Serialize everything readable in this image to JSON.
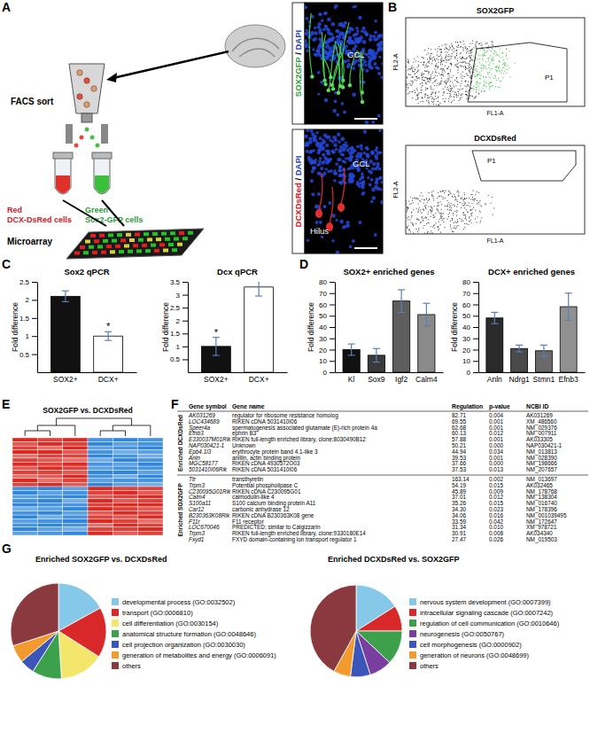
{
  "panel_labels": [
    "A",
    "B",
    "C",
    "D",
    "E",
    "F",
    "G"
  ],
  "schematic": {
    "sort_label": "FACS sort",
    "red_label": "Red",
    "red_cells": "DCX-DsRed cells",
    "green_label": "Green",
    "green_cells": "Sox2-GFP cells",
    "array_label": "Microarray"
  },
  "micrographs": [
    {
      "stain": "SOX2GFP",
      "separator": " / ",
      "counter": "DAPI",
      "regions": [
        "GCL"
      ]
    },
    {
      "stain": "DCXDsRed",
      "separator": " / ",
      "counter": "DAPI",
      "regions": [
        "GCL",
        "Hilus"
      ]
    }
  ],
  "facs": [
    {
      "title": "SOX2GFP",
      "gate": "P1",
      "xlabel": "FL1-A",
      "ylabel": "FL2-A"
    },
    {
      "title": "DCXDsRed",
      "gate": "P1",
      "xlabel": "FL1-A",
      "ylabel": "FL2-A"
    }
  ],
  "chart_data": [
    {
      "type": "bar",
      "title": "Sox2 qPCR",
      "ylabel": "Fold difference",
      "categories": [
        "SOX2+",
        "DCX+"
      ],
      "values": [
        2.1,
        1.0
      ],
      "errors": [
        0.15,
        0.12
      ],
      "colors": [
        "#111111",
        "#ffffff"
      ],
      "ylim": [
        0,
        2.5
      ],
      "yticks": [
        0.5,
        1,
        1.5,
        2,
        2.5
      ],
      "annotations": [
        {
          "text": "*",
          "category": "DCX+"
        }
      ]
    },
    {
      "type": "bar",
      "title": "Dcx qPCR",
      "ylabel": "Fold difference",
      "categories": [
        "SOX2+",
        "DCX+"
      ],
      "values": [
        1.0,
        3.3
      ],
      "errors": [
        0.35,
        0.35
      ],
      "colors": [
        "#111111",
        "#ffffff"
      ],
      "ylim": [
        0,
        3.5
      ],
      "yticks": [
        0.5,
        1,
        1.5,
        2,
        2.5,
        3,
        3.5
      ],
      "annotations": [
        {
          "text": "*",
          "category": "SOX2+"
        }
      ]
    },
    {
      "type": "bar",
      "title": "SOX2+ enriched genes",
      "ylabel": "Fold difference",
      "categories": [
        "Kl",
        "Sox9",
        "Igf2",
        "Calm4"
      ],
      "values": [
        20,
        15,
        63,
        51
      ],
      "errors": [
        5,
        6,
        10,
        10
      ],
      "colors": [
        "#111111",
        "#3a3a3a",
        "#5e5e5e",
        "#8a8a8a"
      ],
      "ylim": [
        0,
        80
      ],
      "yticks": [
        0,
        10,
        20,
        30,
        40,
        50,
        60,
        70,
        80
      ]
    },
    {
      "type": "bar",
      "title": "DCX+ enriched genes",
      "ylabel": "Fold difference",
      "categories": [
        "Anln",
        "Ndrg1",
        "Stmn1",
        "Efnb3"
      ],
      "values": [
        48,
        21,
        19,
        58
      ],
      "errors": [
        5,
        3,
        5,
        12
      ],
      "colors": [
        "#2a2a2a",
        "#4a4a4a",
        "#6a6a6a",
        "#909090"
      ],
      "ylim": [
        0,
        80
      ],
      "yticks": [
        0,
        10,
        20,
        30,
        40,
        50,
        60,
        70,
        80
      ]
    },
    {
      "type": "heatmap",
      "title": "SOX2GFP vs. DCXDsRed",
      "cells": [
        [
          0.9,
          0.8,
          0.9,
          -0.8,
          -0.9,
          -0.8
        ],
        [
          0.7,
          0.9,
          0.8,
          -0.9,
          -0.7,
          -0.8
        ],
        [
          0.8,
          0.6,
          0.9,
          -0.7,
          -0.8,
          -0.9
        ],
        [
          0.9,
          0.9,
          0.7,
          -0.8,
          -0.6,
          -0.7
        ],
        [
          0.6,
          0.8,
          0.8,
          -0.9,
          -0.8,
          -0.6
        ],
        [
          0.8,
          0.7,
          0.6,
          -0.6,
          -0.9,
          -0.8
        ],
        [
          0.9,
          0.8,
          0.9,
          -0.8,
          -0.7,
          -0.9
        ],
        [
          0.7,
          0.9,
          0.8,
          -0.7,
          -0.8,
          -0.8
        ],
        [
          0.8,
          0.8,
          0.7,
          -0.9,
          -0.9,
          -0.7
        ],
        [
          0.6,
          0.7,
          0.9,
          -0.8,
          -0.6,
          -0.9
        ],
        [
          0.9,
          0.6,
          0.8,
          -0.7,
          -0.8,
          -0.8
        ],
        [
          0.8,
          0.9,
          0.7,
          -0.9,
          -0.7,
          -0.6
        ],
        [
          -0.8,
          -0.9,
          -0.7,
          0.9,
          0.8,
          0.8
        ],
        [
          -0.9,
          -0.7,
          -0.8,
          0.8,
          0.9,
          0.7
        ],
        [
          -0.7,
          -0.8,
          -0.9,
          0.7,
          0.8,
          0.9
        ],
        [
          -0.8,
          -0.9,
          -0.6,
          0.9,
          0.7,
          0.8
        ],
        [
          -0.9,
          -0.8,
          -0.8,
          0.8,
          0.9,
          0.9
        ],
        [
          -0.6,
          -0.7,
          -0.9,
          0.9,
          0.8,
          0.7
        ],
        [
          -0.8,
          -0.9,
          -0.7,
          0.7,
          0.9,
          0.8
        ],
        [
          -0.9,
          -0.6,
          -0.8,
          0.8,
          0.7,
          0.9
        ],
        [
          -0.7,
          -0.8,
          -0.9,
          0.9,
          0.8,
          0.6
        ],
        [
          -0.8,
          -0.9,
          -0.8,
          0.6,
          0.9,
          0.8
        ],
        [
          -0.9,
          -0.7,
          -0.6,
          0.8,
          0.8,
          0.9
        ],
        [
          -0.7,
          -0.8,
          -0.9,
          0.9,
          0.7,
          0.8
        ]
      ]
    },
    {
      "type": "pie",
      "title": "Enriched SOX2GFP vs. DCXDsRed",
      "categories": [
        "developmental process (GO:0032502)",
        "transport (GO:0006810)",
        "cell differentiation (GO:0030154)",
        "anatomical structure formation (GO:0048646)",
        "cell projection organization (GO:0030030)",
        "generation of metabolites and energy (GO:0006091)",
        "others"
      ],
      "values": [
        17,
        17,
        15,
        10,
        5,
        6,
        30
      ],
      "colors": [
        "#86c8e8",
        "#d9282a",
        "#f3e66a",
        "#3da04a",
        "#3b55b8",
        "#f29a2e",
        "#8a3a3f"
      ]
    },
    {
      "type": "pie",
      "title": "Enriched DCXDsRed vs. SOX2GFP",
      "categories": [
        "nervous system development (GO:0007399)",
        "intracellular signaling cascade (GO:0007242)",
        "regulation of cell communication (GO:0010646)",
        "neurogenesis (GO:0050767)",
        "cell morphogenesis (GO:0000902)",
        "generation of neurons (GO:0048699)",
        "others"
      ],
      "values": [
        16,
        9,
        12,
        8,
        7,
        6,
        42
      ],
      "colors": [
        "#86c8e8",
        "#d9282a",
        "#3da04a",
        "#7a3f9e",
        "#3b55b8",
        "#f29a2e",
        "#8a3a3f"
      ]
    }
  ],
  "table": {
    "columns": [
      "Gene symbol",
      "Gene name",
      "Regulation",
      "p-value",
      "NCBI ID"
    ],
    "sections": [
      {
        "label": "Enriched DCXDsRed",
        "rows": [
          [
            "AK031269",
            "regulator for ribosome resistance homolog",
            "82.71",
            "0.004",
            "AK031269"
          ],
          [
            "LOC434689",
            "RIKEN cDNA 5031410I06",
            "69.55",
            "0.001",
            "XM_486560"
          ],
          [
            "Speer4a",
            "spermatogenesis associated glutamate (E)-rich protein 4a",
            "62.68",
            "0.001",
            "NM_029376"
          ],
          [
            "Efnb3",
            "ephrin B3",
            "60.13",
            "0.012",
            "NM_007911"
          ],
          [
            "E330037M01Rik",
            "RIKEN full-length enriched library, clone:8030490B12",
            "57.88",
            "0.001",
            "AK033305"
          ],
          [
            "NAP030421-1",
            "Unknown",
            "50.21",
            "0.000",
            "NAP030421-1"
          ],
          [
            "Epb4.1l3",
            "erythrocyte protein band 4.1-like 3",
            "44.94",
            "0.034",
            "NM_013813"
          ],
          [
            "Anln",
            "anillin, actin binding protein",
            "39.53",
            "0.001",
            "NM_028390"
          ],
          [
            "MGC58177",
            "RIKEN cDNA 4930572O03",
            "37.66",
            "0.000",
            "NM_198666"
          ],
          [
            "5031410I06Rik",
            "RIKEN cDNA 5031410I06",
            "37.53",
            "0.013",
            "NM_207657"
          ]
        ]
      },
      {
        "label": "Enriched SOX2GFP",
        "rows": [
          [
            "Ttr",
            "transthyretin",
            "163.14",
            "0.002",
            "NM_013697"
          ],
          [
            "Trpm3",
            "Potential phospholipase C",
            "54.19",
            "0.015",
            "AK032465"
          ],
          [
            "C230095G01Rik",
            "RIKEN cDNA C230095G01",
            "45.89",
            "0.009",
            "NM_178768"
          ],
          [
            "Calm4",
            "calmodulin-like 4",
            "37.01",
            "0.012",
            "NM_138304"
          ],
          [
            "S100a11",
            "S100 calcium binding protein A11",
            "35.26",
            "0.015",
            "NM_016740"
          ],
          [
            "Car12",
            "carbonic anhydrase 12",
            "34.30",
            "0.023",
            "NM_178396"
          ],
          [
            "B230363K08Rik",
            "RIKEN cDNA B230363K08 gene",
            "34.06",
            "0.016",
            "NM_001039495"
          ],
          [
            "F11r",
            "F11 receptor",
            "33.59",
            "0.042",
            "NM_172647"
          ],
          [
            "LOC670046",
            "PREDICTED: similar to Calgizzarin",
            "31.34",
            "0.010",
            "XM_978721"
          ],
          [
            "Trpm3",
            "RIKEN full-length enriched library, clone:9330180E14",
            "30.91",
            "0.008",
            "AK034340"
          ],
          [
            "Fxyd1",
            "FXYD domain-containing ion transport regulator 1",
            "27.47",
            "0.026",
            "NM_019503"
          ]
        ]
      }
    ]
  }
}
